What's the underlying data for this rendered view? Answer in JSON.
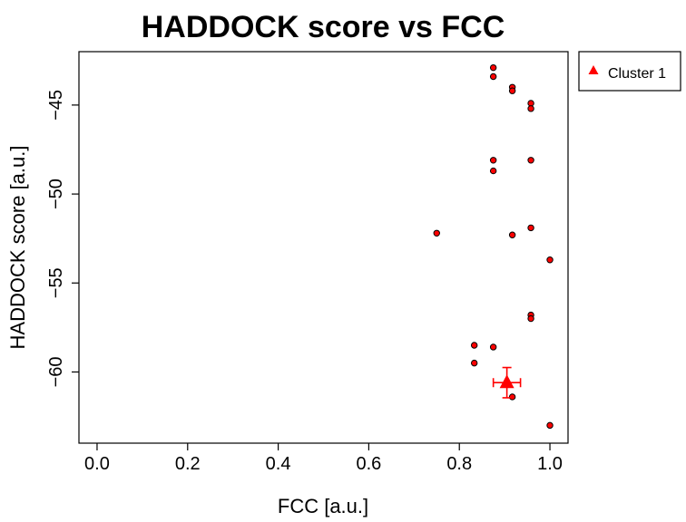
{
  "chart_data": {
    "type": "scatter",
    "title": "HADDOCK score vs FCC",
    "xlabel": "FCC [a.u.]",
    "ylabel": "HADDOCK score [a.u.]",
    "xlim": [
      -0.04,
      1.04
    ],
    "ylim": [
      -64.0,
      -42.0
    ],
    "xticks": [
      0.0,
      0.2,
      0.4,
      0.6,
      0.8,
      1.0
    ],
    "xtick_labels": [
      "0.0",
      "0.2",
      "0.4",
      "0.6",
      "0.8",
      "1.0"
    ],
    "yticks": [
      -60,
      -55,
      -50,
      -45
    ],
    "ytick_labels": [
      "−60",
      "−55",
      "−50",
      "−45"
    ],
    "grid": false,
    "legend": {
      "placement": "outside-top-right",
      "entries": [
        "Cluster 1"
      ]
    },
    "colors": {
      "points": "#ff0000",
      "point_edge": "#000000",
      "summary": "#ff0000"
    },
    "series": [
      {
        "name": "Cluster 1",
        "x": [
          0.875,
          0.875,
          0.917,
          0.917,
          0.958,
          0.958,
          0.875,
          0.875,
          0.958,
          0.958,
          0.75,
          0.917,
          1.0,
          0.958,
          0.958,
          0.833,
          0.875,
          0.833,
          0.917,
          1.0
        ],
        "y": [
          -42.9,
          -43.4,
          -44.0,
          -44.2,
          -44.9,
          -45.2,
          -48.1,
          -48.7,
          -48.1,
          -51.9,
          -52.2,
          -52.3,
          -53.7,
          -56.8,
          -57.0,
          -58.5,
          -58.6,
          -59.5,
          -61.4,
          -63.0
        ]
      }
    ],
    "summary": {
      "name": "Cluster 1",
      "x": 0.905,
      "y": -60.6,
      "x_error": 0.03,
      "y_error": 0.85
    }
  }
}
